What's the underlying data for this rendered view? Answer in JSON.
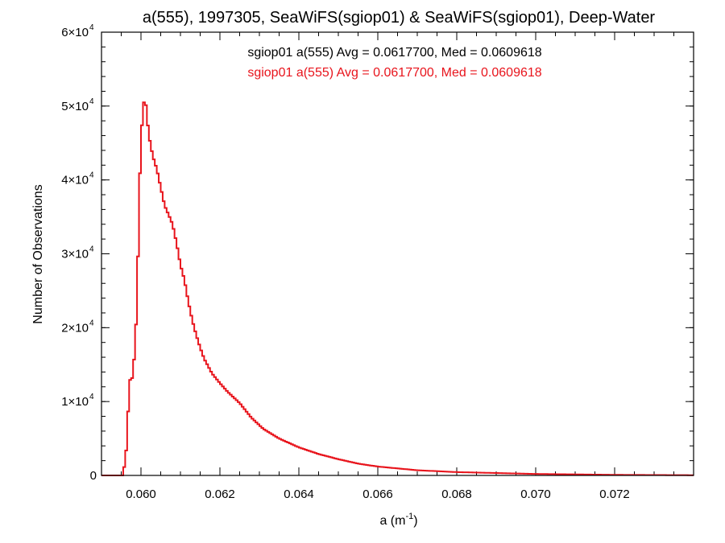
{
  "chart_data": {
    "type": "histogram-step",
    "title": "a(555), 1997305, SeaWiFS(sgiop01) & SeaWiFS(sgiop01), Deep-Water",
    "xlabel": {
      "base": "a (m",
      "sup": "-1",
      "close": ")"
    },
    "ylabel": "Number of Observations",
    "xlim": [
      0.059,
      0.074
    ],
    "ylim": [
      0,
      60000
    ],
    "x_ticks": [
      {
        "value": 0.06,
        "label": "0.060"
      },
      {
        "value": 0.062,
        "label": "0.062"
      },
      {
        "value": 0.064,
        "label": "0.064"
      },
      {
        "value": 0.066,
        "label": "0.066"
      },
      {
        "value": 0.068,
        "label": "0.068"
      },
      {
        "value": 0.07,
        "label": "0.070"
      },
      {
        "value": 0.072,
        "label": "0.072"
      }
    ],
    "y_ticks": [
      {
        "value": 0,
        "mant": "0",
        "exp": ""
      },
      {
        "value": 10000,
        "mant": "1×10",
        "exp": "4"
      },
      {
        "value": 20000,
        "mant": "2×10",
        "exp": "4"
      },
      {
        "value": 30000,
        "mant": "3×10",
        "exp": "4"
      },
      {
        "value": 40000,
        "mant": "4×10",
        "exp": "4"
      },
      {
        "value": 50000,
        "mant": "5×10",
        "exp": "4"
      },
      {
        "value": 60000,
        "mant": "6×10",
        "exp": "4"
      }
    ],
    "annotations": [
      {
        "text": "sgiop01 a(555) Avg = 0.0617700, Med = 0.0609618",
        "color": "#000000"
      },
      {
        "text": "sgiop01 a(555) Avg = 0.0617700, Med = 0.0609618",
        "color": "#e8141c"
      }
    ],
    "series": [
      {
        "color": "#e8141c",
        "anchors": [
          [
            0.059,
            0
          ],
          [
            0.05955,
            0
          ],
          [
            0.05965,
            4500
          ],
          [
            0.0597,
            12800
          ],
          [
            0.0598,
            13300
          ],
          [
            0.0599,
            22800
          ],
          [
            0.05995,
            36500
          ],
          [
            0.06,
            45300
          ],
          [
            0.06005,
            49500
          ],
          [
            0.0601,
            51500
          ],
          [
            0.0602,
            46000
          ],
          [
            0.0603,
            43200
          ],
          [
            0.0604,
            41500
          ],
          [
            0.0605,
            39000
          ],
          [
            0.0606,
            36500
          ],
          [
            0.0607,
            35300
          ],
          [
            0.0608,
            34000
          ],
          [
            0.0609,
            31500
          ],
          [
            0.061,
            28500
          ],
          [
            0.0611,
            26500
          ],
          [
            0.0612,
            23500
          ],
          [
            0.0613,
            21000
          ],
          [
            0.0614,
            19000
          ],
          [
            0.0615,
            17300
          ],
          [
            0.0616,
            15800
          ],
          [
            0.0618,
            13800
          ],
          [
            0.062,
            12500
          ],
          [
            0.0622,
            11300
          ],
          [
            0.0625,
            9800
          ],
          [
            0.0628,
            7800
          ],
          [
            0.0631,
            6300
          ],
          [
            0.0635,
            5000
          ],
          [
            0.064,
            3800
          ],
          [
            0.0645,
            2900
          ],
          [
            0.065,
            2200
          ],
          [
            0.0655,
            1600
          ],
          [
            0.066,
            1200
          ],
          [
            0.067,
            700
          ],
          [
            0.068,
            450
          ],
          [
            0.07,
            200
          ],
          [
            0.072,
            80
          ],
          [
            0.074,
            30
          ]
        ]
      }
    ]
  }
}
